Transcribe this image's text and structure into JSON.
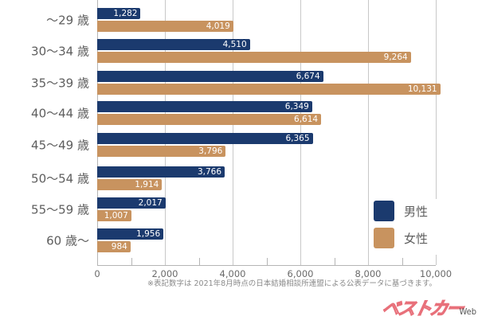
{
  "chart_data": {
    "type": "bar",
    "orientation": "horizontal",
    "title": "",
    "xlabel": "",
    "ylabel": "",
    "categories": [
      "～29 歳",
      "30～34 歳",
      "35～39 歳",
      "40～44 歳",
      "45～49 歳",
      "50～54 歳",
      "55～59 歳",
      "60 歳～"
    ],
    "series": [
      {
        "name": "男性",
        "color": "#1b3a6e",
        "values": [
          1282,
          4510,
          6674,
          6349,
          6365,
          3766,
          2017,
          1956
        ]
      },
      {
        "name": "女性",
        "color": "#c8935f",
        "values": [
          4019,
          9264,
          10131,
          6614,
          3796,
          1914,
          1007,
          984
        ]
      }
    ],
    "xlim": [
      0,
      10000
    ],
    "x_ticks": [
      0,
      2000,
      4000,
      6000,
      8000,
      10000
    ],
    "x_tick_labels": [
      "0",
      "2,000",
      "4,000",
      "6,000",
      "8,000",
      "10,000"
    ],
    "grid": true,
    "legend_position": "lower right",
    "annotations": [
      "※表記数字は 2021年8月時点の日本結婚相談所連盟による公表データに基づきます。"
    ]
  },
  "labels": {
    "male_values": [
      "1,282",
      "4,510",
      "6,674",
      "6,349",
      "6,365",
      "3,766",
      "2,017",
      "1,956"
    ],
    "female_values": [
      "4,019",
      "9,264",
      "10,131",
      "6,614",
      "3,796",
      "1,914",
      "1,007",
      "984"
    ]
  },
  "legend": {
    "male": "男性",
    "female": "女性"
  },
  "footnote": "※表記数字は 2021年8月時点の日本結婚相談所連盟による公表データに基づきます。",
  "logo": {
    "main": "ベストカー",
    "sub": "Web"
  },
  "colors": {
    "male": "#1b3a6e",
    "female": "#c8935f",
    "grid": "#c8c8c8",
    "logo": "#e8707a"
  }
}
